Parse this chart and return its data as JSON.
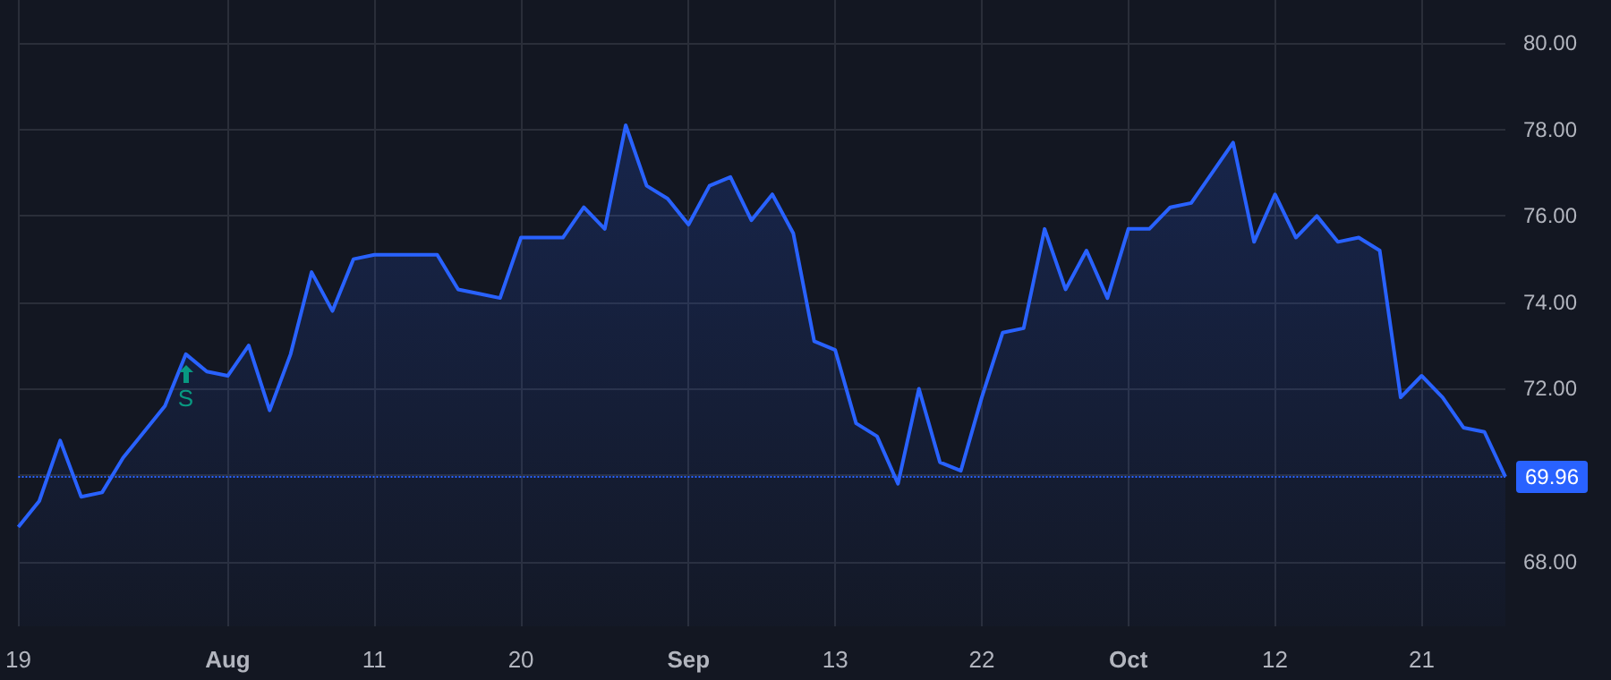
{
  "chart_data": {
    "type": "area",
    "categories": [
      "19",
      null,
      null,
      null,
      null,
      null,
      null,
      null,
      null,
      null,
      "Aug",
      null,
      null,
      null,
      null,
      null,
      null,
      "11",
      null,
      null,
      null,
      null,
      null,
      null,
      "20",
      null,
      null,
      null,
      null,
      null,
      null,
      null,
      "Sep",
      null,
      null,
      null,
      null,
      null,
      null,
      "13",
      null,
      null,
      null,
      null,
      null,
      null,
      "22",
      null,
      null,
      null,
      null,
      null,
      null,
      "Oct",
      null,
      null,
      null,
      null,
      null,
      null,
      "12",
      null,
      null,
      null,
      null,
      null,
      null,
      "21",
      null,
      null,
      null,
      null
    ],
    "series": [
      {
        "color": "#2962ff",
        "values": [
          68.8,
          69.4,
          70.8,
          69.5,
          69.6,
          70.4,
          71.0,
          71.6,
          72.8,
          72.4,
          72.3,
          73.0,
          71.5,
          72.8,
          74.7,
          73.8,
          75.0,
          75.1,
          75.1,
          75.1,
          75.1,
          74.3,
          74.2,
          74.1,
          75.5,
          75.5,
          75.5,
          76.2,
          75.7,
          78.1,
          76.7,
          76.4,
          75.8,
          76.7,
          76.9,
          75.9,
          76.5,
          75.6,
          73.1,
          72.9,
          71.2,
          70.9,
          69.8,
          72.0,
          70.3,
          70.1,
          71.8,
          73.3,
          73.4,
          75.7,
          74.3,
          75.2,
          74.1,
          75.7,
          75.7,
          76.2,
          76.3,
          77.0,
          77.7,
          75.4,
          76.5,
          75.5,
          76.0,
          75.4,
          75.5,
          75.2,
          71.8,
          72.3,
          71.8,
          71.1,
          71.0,
          69.96
        ]
      }
    ],
    "ylim": [
      66.5,
      81
    ],
    "yticks": [
      {
        "value": 68,
        "label": "68.00"
      },
      {
        "value": 70,
        "label": null
      },
      {
        "value": 72,
        "label": "72.00"
      },
      {
        "value": 74,
        "label": "74.00"
      },
      {
        "value": 76,
        "label": "76.00"
      },
      {
        "value": 78,
        "label": "78.00"
      },
      {
        "value": 80,
        "label": "80.00"
      }
    ],
    "grid": true,
    "ref_lines": [
      {
        "axis": "y",
        "value": 69.96,
        "label": "69.96",
        "color": "#2962ff",
        "line_style": "dotted"
      }
    ],
    "annotations": [
      {
        "text": "S",
        "y": 72.3
      }
    ]
  }
}
